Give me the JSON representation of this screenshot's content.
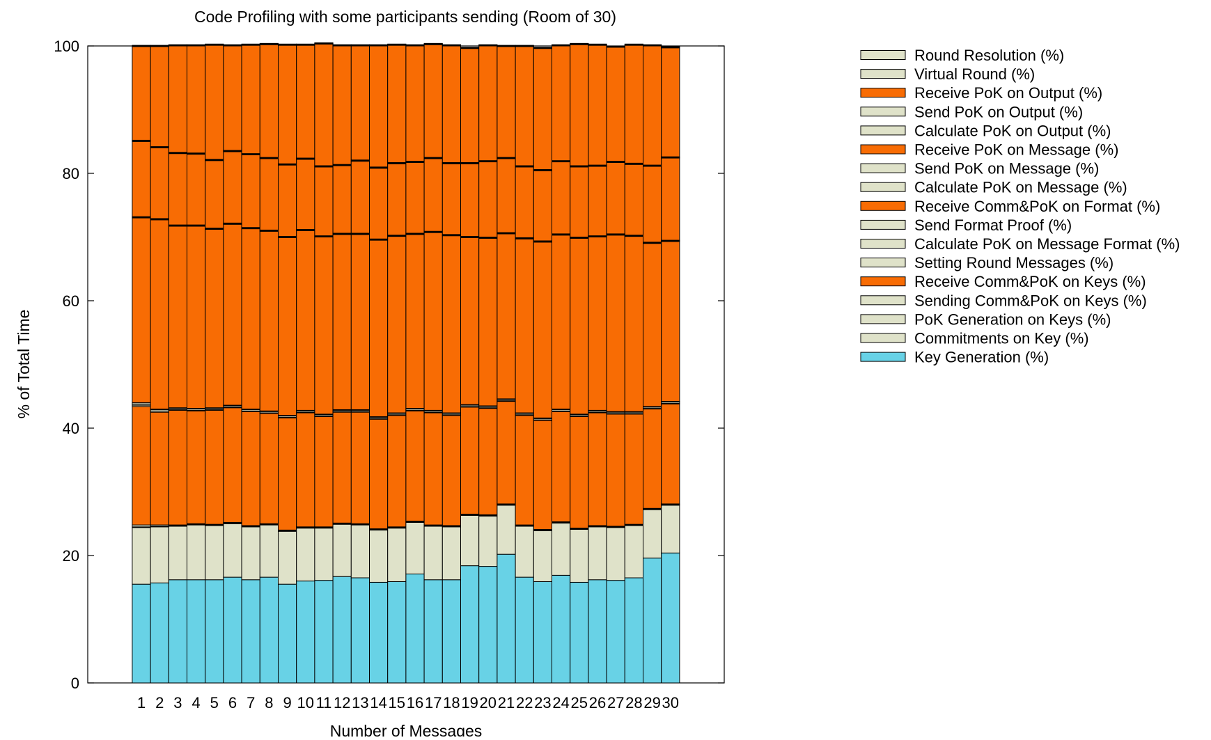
{
  "chart_data": {
    "type": "bar",
    "stacked": true,
    "title": "Code Profiling with some participants sending (Room of 30)",
    "xlabel": "Number of Messages",
    "ylabel": "% of Total Time",
    "ylim": [
      0,
      100
    ],
    "yticks": [
      0,
      20,
      40,
      60,
      80,
      100
    ],
    "legend_position": "right",
    "grid": false,
    "categories": [
      "1",
      "2",
      "3",
      "4",
      "5",
      "6",
      "7",
      "8",
      "9",
      "10",
      "11",
      "12",
      "13",
      "14",
      "15",
      "16",
      "17",
      "18",
      "19",
      "20",
      "21",
      "22",
      "23",
      "24",
      "25",
      "26",
      "27",
      "28",
      "29",
      "30"
    ],
    "series": [
      {
        "name": "Key Generation (%)",
        "color": "#68d2e6",
        "values": [
          15.5,
          15.7,
          16.2,
          16.2,
          16.2,
          16.6,
          16.2,
          16.6,
          15.5,
          16.0,
          16.1,
          16.7,
          16.5,
          15.8,
          15.9,
          17.1,
          16.2,
          16.2,
          18.4,
          18.3,
          20.2,
          16.6,
          15.9,
          16.9,
          15.8,
          16.2,
          16.1,
          16.5,
          19.6,
          20.4
        ]
      },
      {
        "name": "Commitments on Key (%)",
        "color": "#dfe2c9",
        "values": [
          8.9,
          8.8,
          8.4,
          8.6,
          8.5,
          8.4,
          8.3,
          8.2,
          8.3,
          8.3,
          8.2,
          8.2,
          8.3,
          8.2,
          8.4,
          8.1,
          8.4,
          8.3,
          7.9,
          7.9,
          7.7,
          8.0,
          8.0,
          8.2,
          8.3,
          8.3,
          8.3,
          8.2,
          7.6,
          7.5
        ]
      },
      {
        "name": "PoK Generation on Keys (%)",
        "color": "#dfe2c9",
        "values": [
          0.1,
          0.1,
          0.1,
          0.1,
          0.1,
          0.1,
          0.1,
          0.1,
          0.1,
          0.1,
          0.1,
          0.1,
          0.1,
          0.1,
          0.1,
          0.1,
          0.1,
          0.1,
          0.1,
          0.1,
          0.1,
          0.1,
          0.1,
          0.1,
          0.1,
          0.1,
          0.1,
          0.1,
          0.1,
          0.1
        ]
      },
      {
        "name": "Sending Comm&PoK on Keys (%)",
        "color": "#dfe2c9",
        "values": [
          0.3,
          0.2,
          0.1,
          0.1,
          0.1,
          0.1,
          0.1,
          0.1,
          0.1,
          0.1,
          0.1,
          0.1,
          0.1,
          0.1,
          0.1,
          0.1,
          0.1,
          0.1,
          0.1,
          0.1,
          0.1,
          0.1,
          0.1,
          0.1,
          0.1,
          0.1,
          0.1,
          0.1,
          0.1,
          0.1
        ]
      },
      {
        "name": "Receive Comm&PoK on Keys (%)",
        "color": "#f86c04",
        "values": [
          18.6,
          17.7,
          18.0,
          17.7,
          17.9,
          18.0,
          17.9,
          17.3,
          17.6,
          17.9,
          17.3,
          17.4,
          17.5,
          17.2,
          17.5,
          17.3,
          17.6,
          17.3,
          16.8,
          16.7,
          16.1,
          17.2,
          17.1,
          17.3,
          17.5,
          17.7,
          17.6,
          17.3,
          15.6,
          15.7
        ]
      },
      {
        "name": "Setting Round Messages (%)",
        "color": "#dfe2c9",
        "values": [
          0.2,
          0.2,
          0.1,
          0.1,
          0.1,
          0.1,
          0.1,
          0.1,
          0.1,
          0.1,
          0.1,
          0.1,
          0.1,
          0.1,
          0.1,
          0.1,
          0.1,
          0.1,
          0.1,
          0.1,
          0.1,
          0.1,
          0.1,
          0.1,
          0.1,
          0.1,
          0.1,
          0.1,
          0.1,
          0.1
        ]
      },
      {
        "name": "Calculate PoK on Message Format (%)",
        "color": "#dfe2c9",
        "values": [
          0.2,
          0.2,
          0.2,
          0.2,
          0.2,
          0.2,
          0.2,
          0.2,
          0.2,
          0.2,
          0.2,
          0.2,
          0.2,
          0.2,
          0.2,
          0.2,
          0.2,
          0.2,
          0.2,
          0.2,
          0.2,
          0.2,
          0.2,
          0.2,
          0.2,
          0.2,
          0.2,
          0.2,
          0.2,
          0.2
        ]
      },
      {
        "name": "Send Format Proof (%)",
        "color": "#dfe2c9",
        "values": [
          0.2,
          0.1,
          0.1,
          0.1,
          0.1,
          0.1,
          0.1,
          0.1,
          0.1,
          0.1,
          0.1,
          0.1,
          0.1,
          0.1,
          0.1,
          0.1,
          0.1,
          0.1,
          0.1,
          0.1,
          0.1,
          0.1,
          0.1,
          0.1,
          0.1,
          0.1,
          0.1,
          0.1,
          0.1,
          0.1
        ]
      },
      {
        "name": "Receive Comm&PoK on Format (%)",
        "color": "#f86c04",
        "values": [
          29.0,
          29.7,
          28.5,
          28.6,
          28.0,
          28.4,
          28.3,
          28.2,
          27.9,
          28.2,
          27.8,
          27.5,
          27.5,
          27.7,
          27.7,
          27.3,
          27.9,
          27.8,
          26.2,
          26.3,
          25.9,
          27.3,
          27.6,
          27.3,
          27.6,
          27.2,
          27.7,
          27.5,
          25.6,
          25.1
        ]
      },
      {
        "name": "Calculate PoK on Message (%)",
        "color": "#dfe2c9",
        "values": [
          0.1,
          0.1,
          0.1,
          0.1,
          0.1,
          0.1,
          0.1,
          0.1,
          0.1,
          0.1,
          0.1,
          0.1,
          0.1,
          0.1,
          0.1,
          0.1,
          0.1,
          0.1,
          0.1,
          0.1,
          0.1,
          0.1,
          0.1,
          0.1,
          0.1,
          0.1,
          0.1,
          0.1,
          0.1,
          0.1
        ]
      },
      {
        "name": "Send PoK on Message (%)",
        "color": "#dfe2c9",
        "values": [
          0.1,
          0.1,
          0.1,
          0.1,
          0.1,
          0.1,
          0.1,
          0.1,
          0.1,
          0.1,
          0.1,
          0.1,
          0.1,
          0.1,
          0.1,
          0.1,
          0.1,
          0.1,
          0.1,
          0.1,
          0.1,
          0.1,
          0.1,
          0.1,
          0.1,
          0.1,
          0.1,
          0.1,
          0.1,
          0.1
        ]
      },
      {
        "name": "Receive PoK on Message (%)",
        "color": "#f86c04",
        "values": [
          11.8,
          11.1,
          11.2,
          11.1,
          10.6,
          11.2,
          11.4,
          11.2,
          11.2,
          11.0,
          10.8,
          10.6,
          11.3,
          11.1,
          11.2,
          11.1,
          11.4,
          11.1,
          11.4,
          11.8,
          11.6,
          11.1,
          11.0,
          11.3,
          11.0,
          10.9,
          11.2,
          11.1,
          11.9,
          12.9
        ]
      },
      {
        "name": "Calculate PoK on Output (%)",
        "color": "#dfe2c9",
        "values": [
          0.1,
          0.1,
          0.1,
          0.1,
          0.1,
          0.1,
          0.1,
          0.1,
          0.1,
          0.1,
          0.1,
          0.1,
          0.1,
          0.1,
          0.1,
          0.1,
          0.1,
          0.1,
          0.1,
          0.1,
          0.1,
          0.1,
          0.1,
          0.1,
          0.1,
          0.1,
          0.1,
          0.1,
          0.1,
          0.1
        ]
      },
      {
        "name": "Send PoK on Output (%)",
        "color": "#dfe2c9",
        "values": [
          0.1,
          0.1,
          0.1,
          0.1,
          0.1,
          0.1,
          0.1,
          0.1,
          0.1,
          0.1,
          0.1,
          0.1,
          0.1,
          0.1,
          0.1,
          0.1,
          0.1,
          0.1,
          0.1,
          0.1,
          0.1,
          0.1,
          0.1,
          0.1,
          0.1,
          0.1,
          0.1,
          0.1,
          0.1,
          0.1
        ]
      },
      {
        "name": "Receive PoK on Output (%)",
        "color": "#f86c04",
        "values": [
          14.7,
          15.7,
          16.7,
          16.8,
          17.9,
          16.4,
          17.0,
          17.7,
          18.6,
          17.7,
          19.1,
          18.6,
          17.9,
          19.0,
          18.4,
          18.1,
          17.7,
          18.3,
          17.9,
          18.0,
          17.4,
          18.7,
          19.0,
          18.0,
          19.0,
          18.8,
          17.9,
          18.5,
          18.7,
          17.1
        ]
      },
      {
        "name": "Virtual Round (%)",
        "color": "#dfe2c9",
        "values": [
          0.1,
          0.1,
          0.1,
          0.1,
          0.1,
          0.1,
          0.1,
          0.1,
          0.1,
          0.1,
          0.1,
          0.1,
          0.1,
          0.1,
          0.1,
          0.1,
          0.1,
          0.1,
          0.1,
          0.1,
          0.1,
          0.1,
          0.1,
          0.1,
          0.1,
          0.1,
          0.1,
          0.1,
          0.1,
          0.1
        ]
      },
      {
        "name": "Round Resolution (%)",
        "color": "#dfe2c9",
        "values": [
          0.1,
          0.1,
          0.1,
          0.1,
          0.1,
          0.1,
          0.1,
          0.1,
          0.1,
          0.1,
          0.1,
          0.1,
          0.1,
          0.1,
          0.1,
          0.1,
          0.1,
          0.1,
          0.1,
          0.1,
          0.1,
          0.1,
          0.1,
          0.1,
          0.1,
          0.1,
          0.1,
          0.1,
          0.1,
          0.1
        ]
      }
    ]
  }
}
